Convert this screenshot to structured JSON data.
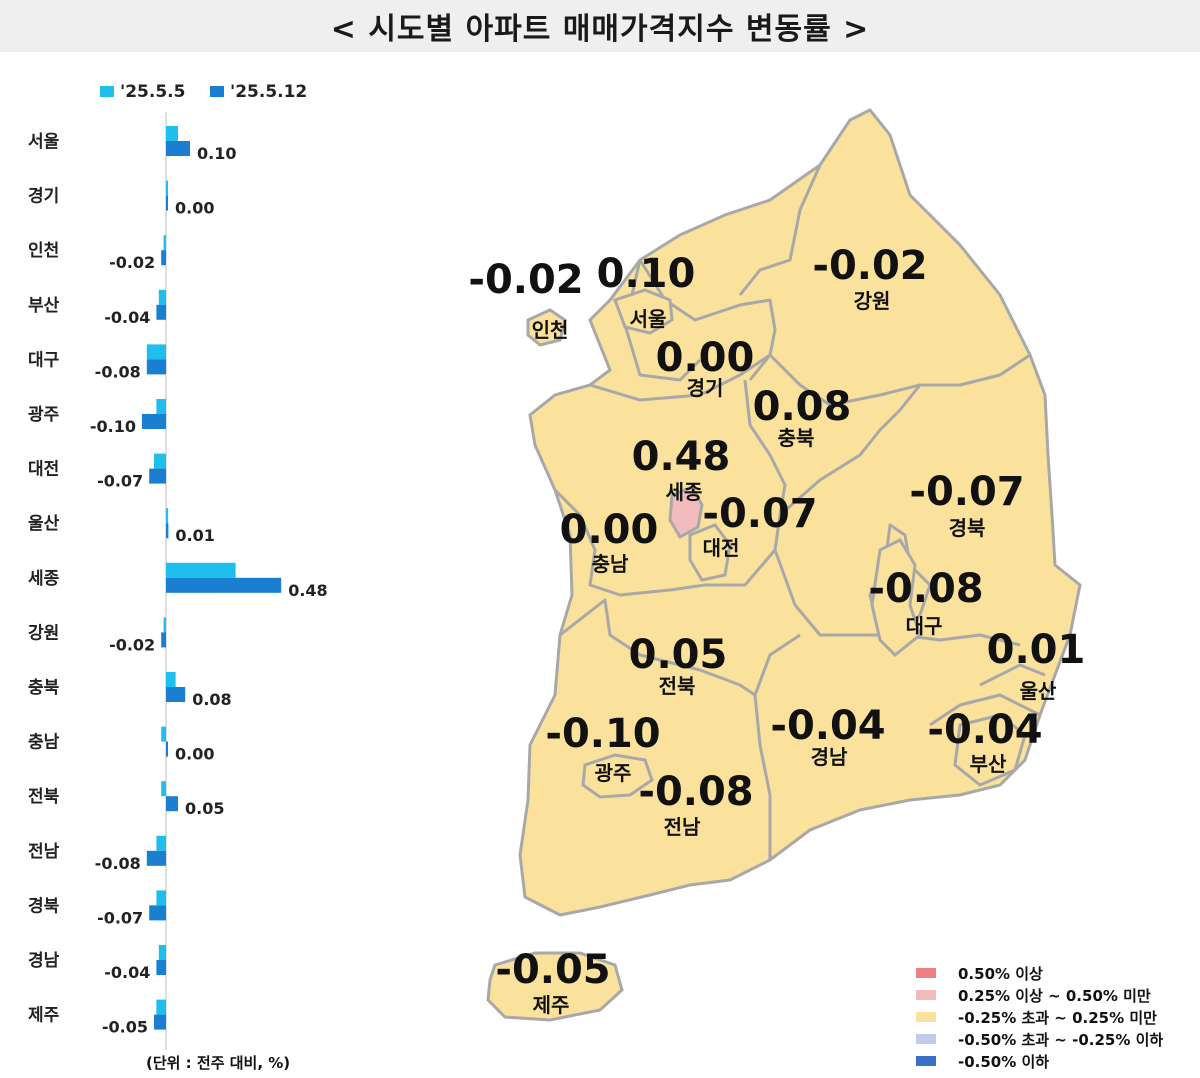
{
  "title": "< 시도별 아파트 매매가격지수 변동률 >",
  "unit_note": "(단위 : 전주 대비, %)",
  "colors": {
    "series_prev": "#1ebeed",
    "series_curr": "#1a7fd0",
    "map_fill_neutral": "#fae29c",
    "map_fill_high": "#f2bcbf",
    "map_border": "#a8a8a8"
  },
  "chart_data": [
    {
      "type": "bar",
      "orientation": "horizontal",
      "categories": [
        "서울",
        "경기",
        "인천",
        "부산",
        "대구",
        "광주",
        "대전",
        "울산",
        "세종",
        "강원",
        "충북",
        "충남",
        "전북",
        "전남",
        "경북",
        "경남",
        "제주"
      ],
      "series": [
        {
          "name": "'25.5.5",
          "values": [
            0.05,
            0.0,
            -0.01,
            -0.03,
            -0.08,
            -0.04,
            -0.05,
            0.0,
            0.29,
            -0.01,
            0.04,
            -0.02,
            -0.02,
            -0.04,
            -0.04,
            -0.03,
            -0.04
          ]
        },
        {
          "name": "'25.5.12",
          "values": [
            0.1,
            0.0,
            -0.02,
            -0.04,
            -0.08,
            -0.1,
            -0.07,
            0.01,
            0.48,
            -0.02,
            0.08,
            0.0,
            0.05,
            -0.08,
            -0.07,
            -0.04,
            -0.05
          ]
        }
      ],
      "data_labels": [
        "0.10",
        "0.00",
        "-0.02",
        "-0.04",
        "-0.08",
        "-0.10",
        "-0.07",
        "0.01",
        "0.48",
        "-0.02",
        "0.08",
        "0.00",
        "0.05",
        "-0.08",
        "-0.07",
        "-0.04",
        "-0.05"
      ],
      "legend_position": "top",
      "grid": false
    },
    {
      "type": "choropleth",
      "regions": [
        {
          "name": "인천",
          "value": "-0.02"
        },
        {
          "name": "서울",
          "value": "0.10"
        },
        {
          "name": "강원",
          "value": "-0.02"
        },
        {
          "name": "경기",
          "value": "0.00"
        },
        {
          "name": "충북",
          "value": "0.08"
        },
        {
          "name": "세종",
          "value": "0.48"
        },
        {
          "name": "대전",
          "value": "-0.07"
        },
        {
          "name": "경북",
          "value": "-0.07"
        },
        {
          "name": "충남",
          "value": "0.00"
        },
        {
          "name": "대구",
          "value": "-0.08"
        },
        {
          "name": "전북",
          "value": "0.05"
        },
        {
          "name": "울산",
          "value": "0.01"
        },
        {
          "name": "광주",
          "value": "-0.10"
        },
        {
          "name": "경남",
          "value": "-0.04"
        },
        {
          "name": "부산",
          "value": "-0.04"
        },
        {
          "name": "전남",
          "value": "-0.08"
        },
        {
          "name": "제주",
          "value": "-0.05"
        }
      ],
      "legend": [
        {
          "label": "0.50% 이상",
          "color": "#ee7e80"
        },
        {
          "label": "0.25% 이상 ~ 0.50% 미만",
          "color": "#f2bcbf"
        },
        {
          "label": "-0.25% 초과 ~ 0.25% 미만",
          "color": "#fae29c"
        },
        {
          "label": "-0.50% 초과 ~ -0.25% 이하",
          "color": "#bfcde8"
        },
        {
          "label": "-0.50% 이하",
          "color": "#3b6fc6"
        }
      ],
      "legend_position": "bottom-right"
    }
  ]
}
